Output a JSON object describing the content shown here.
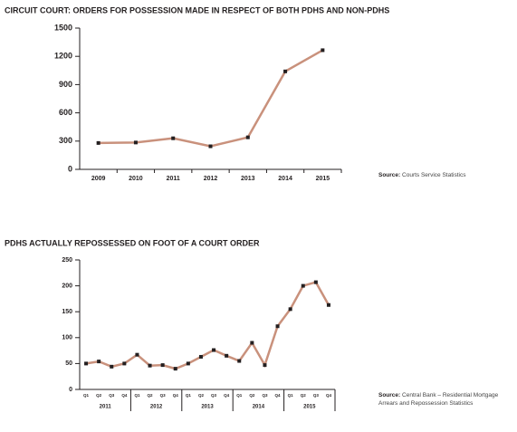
{
  "chart_data": [
    {
      "type": "line",
      "title": "CIRCUIT COURT: ORDERS FOR POSSESSION MADE IN RESPECT OF BOTH PDHS AND NON-PDHS",
      "categories": [
        "2009",
        "2010",
        "2011",
        "2012",
        "2013",
        "2014",
        "2015"
      ],
      "series": [
        {
          "color": "#c9917c",
          "values": [
            280,
            285,
            330,
            245,
            340,
            1040,
            1265
          ]
        }
      ],
      "ylim": [
        0,
        1500
      ],
      "yticks": [
        0,
        300,
        600,
        900,
        1200,
        1500
      ],
      "source_label": "Source:",
      "source_text": "Courts Service Statistics"
    },
    {
      "type": "line",
      "title": "PDHS ACTUALLY REPOSSESSED ON FOOT OF A COURT ORDER",
      "categories": [
        "Q1",
        "Q2",
        "Q3",
        "Q4",
        "Q1",
        "Q2",
        "Q3",
        "Q4",
        "Q1",
        "Q2",
        "Q3",
        "Q4",
        "Q1",
        "Q2",
        "Q3",
        "Q4",
        "Q1",
        "Q2",
        "Q3",
        "Q4"
      ],
      "groups": [
        "2011",
        "2012",
        "2013",
        "2014",
        "2015"
      ],
      "series": [
        {
          "color": "#c9917c",
          "values": [
            50,
            54,
            44,
            50,
            67,
            46,
            47,
            40,
            50,
            63,
            76,
            65,
            55,
            90,
            47,
            122,
            155,
            200,
            207,
            163
          ]
        }
      ],
      "ylim": [
        0,
        250
      ],
      "yticks": [
        0,
        50,
        100,
        150,
        200,
        250
      ],
      "source_label": "Source:",
      "source_text": "Central Bank – Residential Mortgage Arrears and Repossession Statistics"
    }
  ]
}
